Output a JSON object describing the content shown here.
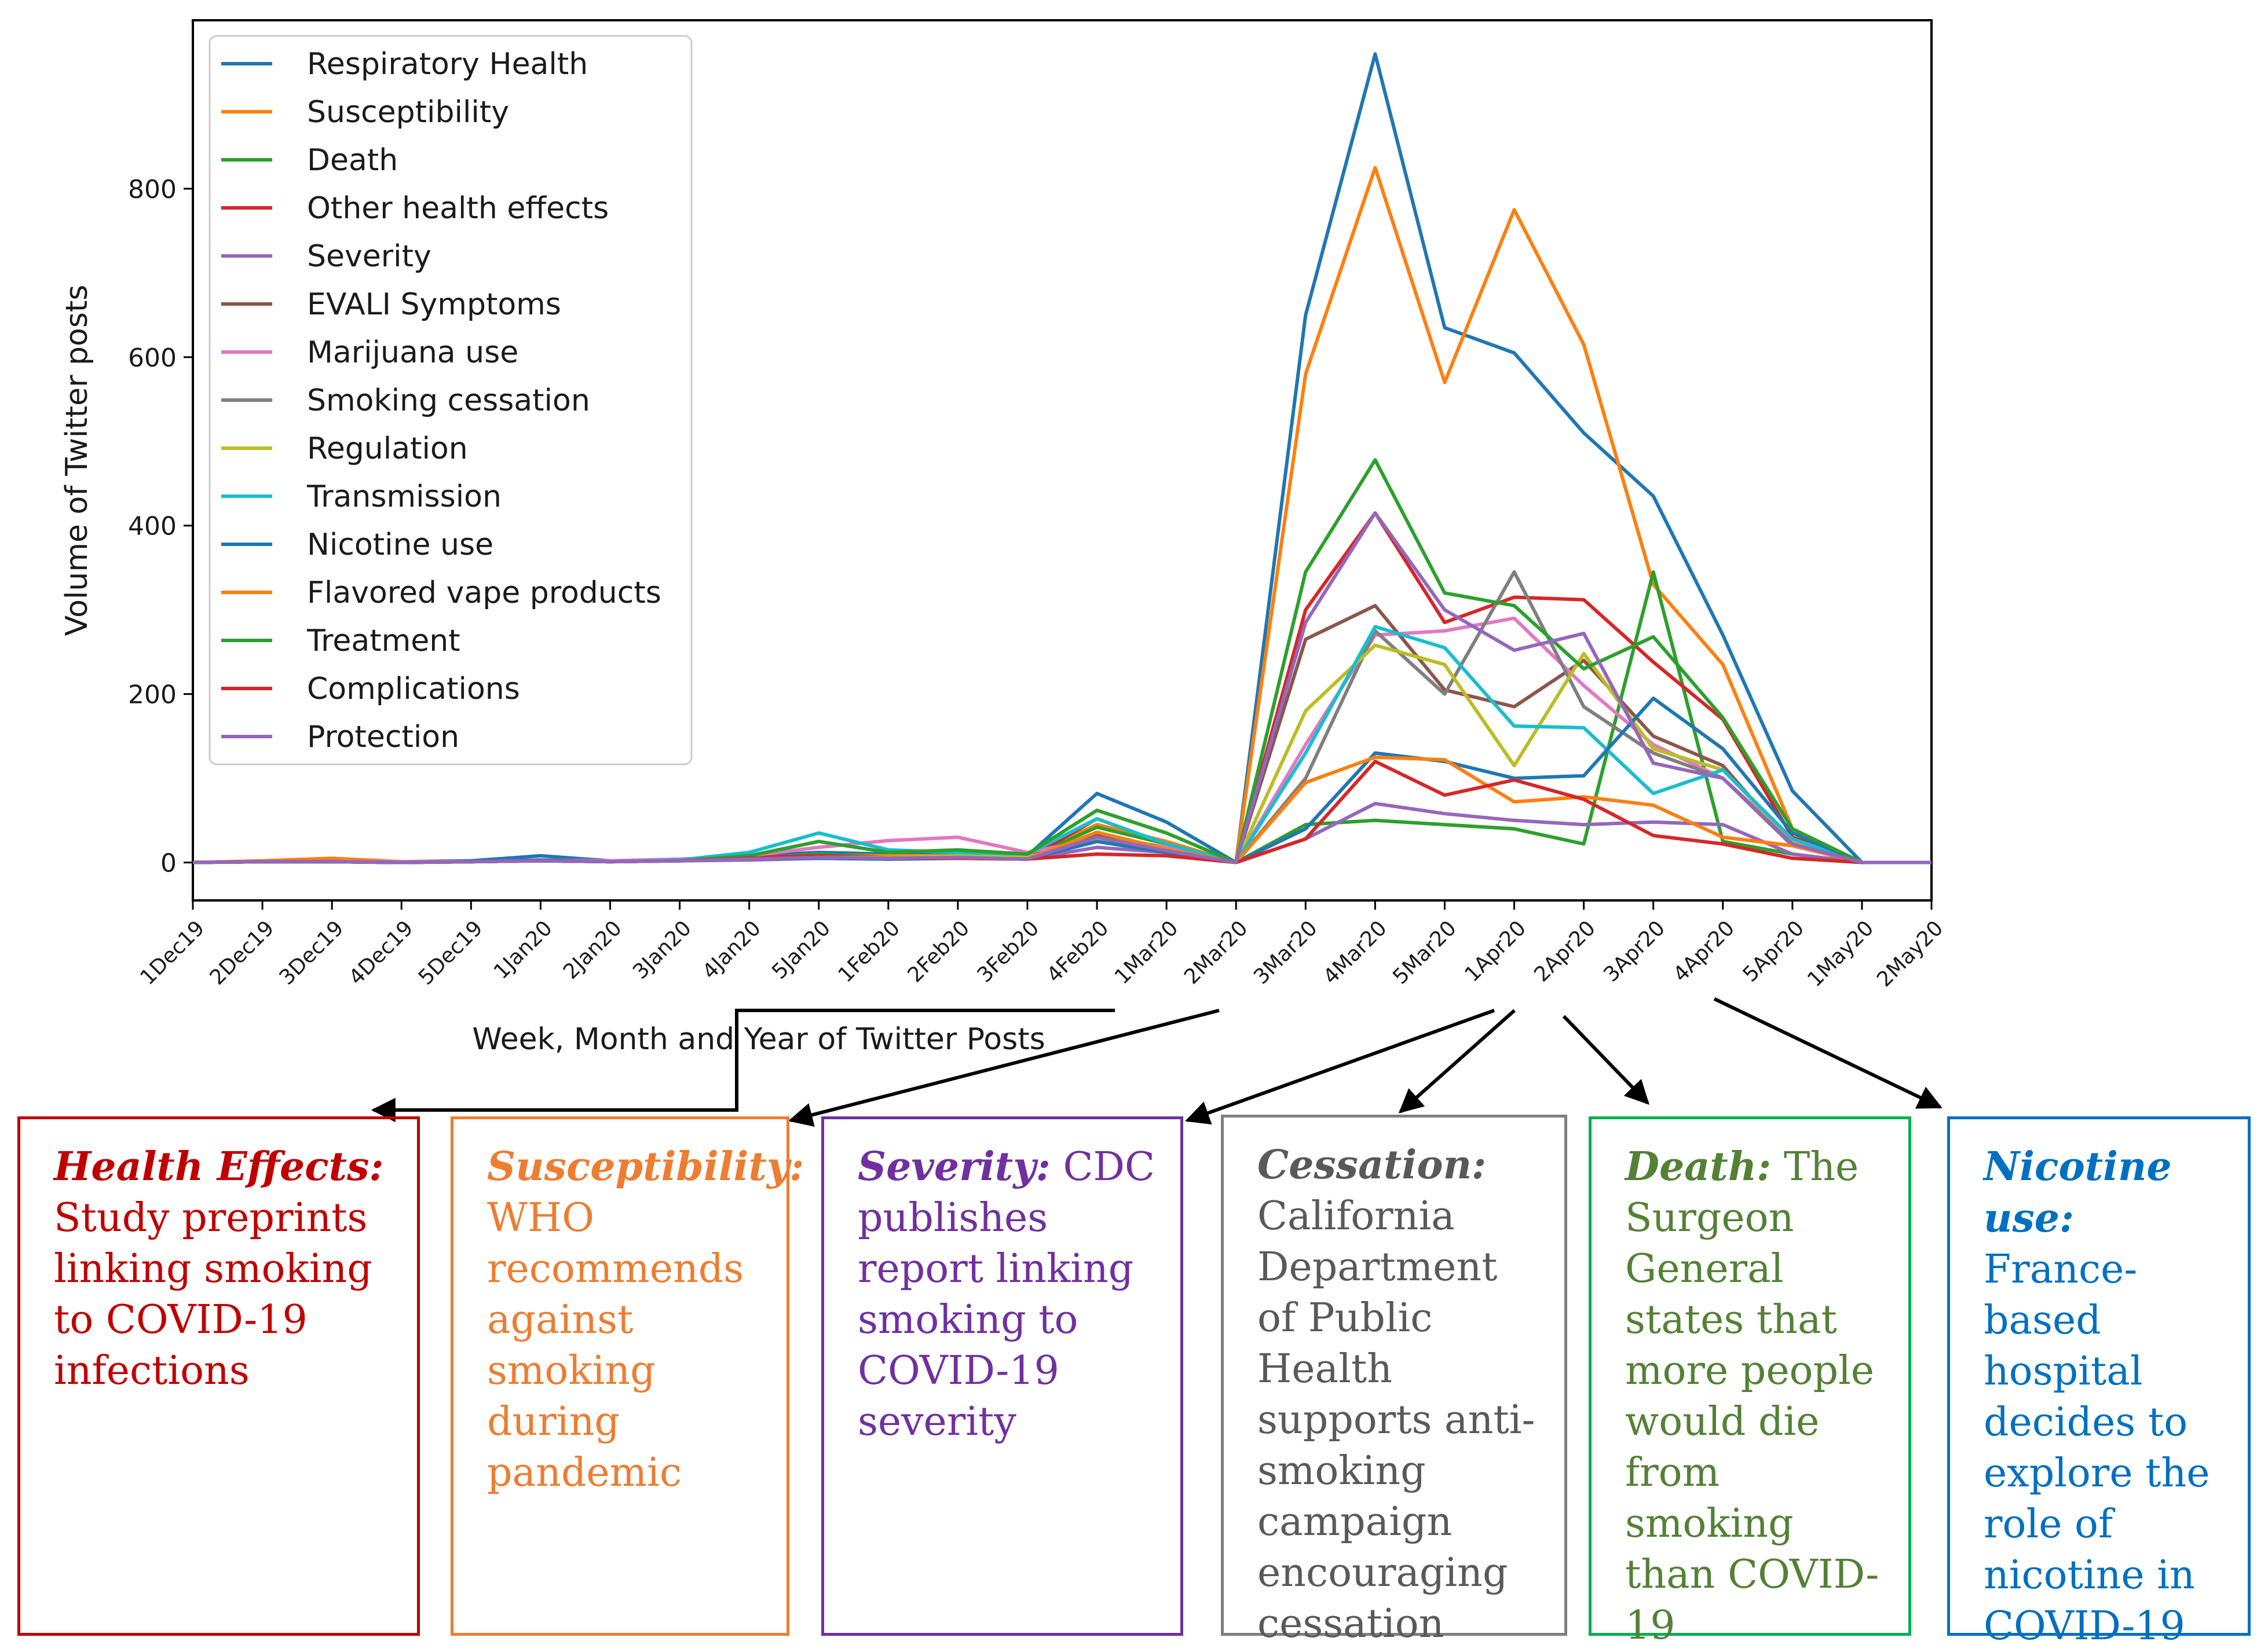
{
  "chart_data": {
    "type": "line",
    "xlabel": "Week, Month and Year of Twitter Posts",
    "ylabel": "Volume of Twitter posts",
    "ylim": [
      -45,
      1000
    ],
    "yticks": [
      0,
      200,
      400,
      600,
      800
    ],
    "categories": [
      "1Dec19",
      "2Dec19",
      "3Dec19",
      "4Dec19",
      "5Dec19",
      "1Jan20",
      "2Jan20",
      "3Jan20",
      "4Jan20",
      "5Jan20",
      "1Feb20",
      "2Feb20",
      "3Feb20",
      "4Feb20",
      "1Mar20",
      "2Mar20",
      "3Mar20",
      "4Mar20",
      "5Mar20",
      "1Apr20",
      "2Apr20",
      "3Apr20",
      "4Apr20",
      "5Apr20",
      "1May20",
      "2May20"
    ],
    "legend_position": "top-left",
    "series": [
      {
        "name": "Respiratory Health",
        "color": "#1f77b4",
        "values": [
          0,
          1,
          2,
          1,
          2,
          8,
          2,
          3,
          8,
          12,
          10,
          10,
          8,
          82,
          48,
          0,
          650,
          960,
          635,
          605,
          510,
          435,
          270,
          85,
          0,
          0
        ]
      },
      {
        "name": "Susceptibility",
        "color": "#ff7f0e",
        "values": [
          0,
          2,
          5,
          1,
          1,
          2,
          1,
          3,
          6,
          9,
          8,
          8,
          7,
          45,
          25,
          0,
          580,
          825,
          570,
          775,
          615,
          330,
          235,
          40,
          0,
          0
        ]
      },
      {
        "name": "Death",
        "color": "#2ca02c",
        "values": [
          0,
          1,
          1,
          0,
          1,
          2,
          1,
          2,
          5,
          10,
          6,
          8,
          5,
          42,
          22,
          0,
          45,
          50,
          45,
          40,
          22,
          345,
          25,
          10,
          0,
          0
        ]
      },
      {
        "name": "Other health effects",
        "color": "#d62728",
        "values": [
          0,
          1,
          1,
          0,
          1,
          2,
          1,
          2,
          6,
          8,
          6,
          7,
          4,
          52,
          22,
          0,
          300,
          415,
          285,
          315,
          312,
          238,
          170,
          30,
          0,
          0
        ]
      },
      {
        "name": "Severity",
        "color": "#9467bd",
        "values": [
          0,
          1,
          1,
          0,
          1,
          2,
          1,
          2,
          3,
          5,
          4,
          6,
          4,
          18,
          12,
          0,
          28,
          70,
          58,
          50,
          45,
          48,
          45,
          10,
          0,
          0
        ]
      },
      {
        "name": "EVALI Symptoms",
        "color": "#8c564b",
        "values": [
          0,
          1,
          1,
          0,
          1,
          2,
          1,
          2,
          4,
          6,
          5,
          6,
          4,
          32,
          18,
          0,
          265,
          305,
          205,
          185,
          240,
          150,
          115,
          20,
          0,
          0
        ]
      },
      {
        "name": "Marijuana use",
        "color": "#e377c2",
        "values": [
          0,
          1,
          2,
          1,
          1,
          3,
          2,
          4,
          8,
          18,
          26,
          30,
          12,
          28,
          18,
          0,
          140,
          270,
          275,
          290,
          210,
          140,
          100,
          25,
          0,
          0
        ]
      },
      {
        "name": "Smoking cessation",
        "color": "#7f7f7f",
        "values": [
          0,
          1,
          1,
          0,
          1,
          2,
          1,
          2,
          4,
          6,
          6,
          8,
          6,
          30,
          15,
          0,
          100,
          275,
          200,
          345,
          185,
          130,
          100,
          20,
          0,
          0
        ]
      },
      {
        "name": "Regulation",
        "color": "#bcbd22",
        "values": [
          0,
          1,
          1,
          0,
          1,
          2,
          1,
          2,
          4,
          6,
          6,
          8,
          6,
          28,
          12,
          0,
          180,
          258,
          235,
          115,
          248,
          135,
          110,
          25,
          0,
          0
        ]
      },
      {
        "name": "Transmission",
        "color": "#17becf",
        "values": [
          0,
          1,
          1,
          0,
          1,
          2,
          1,
          3,
          12,
          35,
          15,
          12,
          10,
          52,
          22,
          0,
          130,
          280,
          255,
          162,
          160,
          82,
          110,
          28,
          0,
          0
        ]
      },
      {
        "name": "Nicotine use",
        "color": "#1f77b4",
        "values": [
          0,
          1,
          1,
          0,
          1,
          3,
          1,
          2,
          4,
          5,
          4,
          5,
          4,
          25,
          12,
          0,
          40,
          130,
          120,
          100,
          103,
          195,
          135,
          35,
          0,
          0
        ]
      },
      {
        "name": "Flavored vape products",
        "color": "#ff7f0e",
        "values": [
          0,
          1,
          2,
          0,
          1,
          2,
          1,
          2,
          4,
          6,
          5,
          6,
          4,
          36,
          16,
          0,
          95,
          125,
          122,
          72,
          78,
          68,
          30,
          20,
          0,
          0
        ]
      },
      {
        "name": "Treatment",
        "color": "#2ca02c",
        "values": [
          0,
          1,
          1,
          0,
          1,
          2,
          1,
          2,
          8,
          25,
          12,
          15,
          10,
          62,
          35,
          0,
          345,
          478,
          320,
          305,
          230,
          268,
          172,
          40,
          0,
          0
        ]
      },
      {
        "name": "Complications",
        "color": "#d62728",
        "values": [
          0,
          1,
          1,
          0,
          1,
          2,
          1,
          2,
          5,
          6,
          5,
          5,
          4,
          10,
          8,
          0,
          28,
          120,
          80,
          98,
          75,
          32,
          22,
          5,
          0,
          0
        ]
      },
      {
        "name": "Protection",
        "color": "#9467bd",
        "values": [
          0,
          1,
          1,
          0,
          1,
          2,
          1,
          2,
          4,
          6,
          5,
          6,
          4,
          30,
          14,
          0,
          285,
          415,
          300,
          252,
          272,
          118,
          100,
          22,
          0,
          0
        ]
      }
    ]
  },
  "annotations": {
    "health_effects": {
      "lead": "Health Effects:",
      "body": "Study preprints linking smoking to COVID-19 infections",
      "color": "#c00000"
    },
    "susceptibility": {
      "lead": "Susceptibility:",
      "body": "WHO recommends against smoking during pandemic",
      "color": "#ed7d31"
    },
    "severity": {
      "lead": "Severity:",
      "body": "CDC publishes report linking smoking to COVID-19 severity",
      "color": "#7030a0"
    },
    "cessation": {
      "lead": "Cessation:",
      "body": "California Department of Public Health supports anti-smoking campaign encouraging cessation",
      "color": "#595959"
    },
    "death": {
      "lead": "Death:",
      "body": "The Surgeon General states that more people would die  from smoking than COVID-19",
      "color": "#538135"
    },
    "nicotine": {
      "lead": "Nicotine use:",
      "body": "France-based hospital decides to explore  the role of nicotine in COVID-19",
      "color": "#0070c0"
    }
  }
}
